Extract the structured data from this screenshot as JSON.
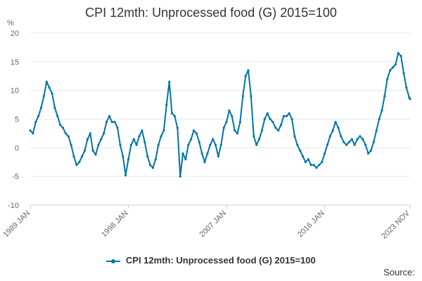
{
  "chart_data": {
    "type": "line",
    "title": "CPI 12mth: Unprocessed food (G) 2015=100",
    "ylabel": "%",
    "ylim": [
      -10,
      20
    ],
    "yticks": [
      "20",
      "15",
      "10",
      "5",
      "0",
      "-5",
      "-10"
    ],
    "xticks": [
      "1989 JAN",
      "1998 JAN",
      "2007 JAN",
      "2016 JAN",
      "2023 NOV"
    ],
    "x_start": "1989-01",
    "x_end": "2023-11",
    "grid": "horizontal",
    "legend_position": "bottom",
    "series": [
      {
        "name": "CPI 12mth: Unprocessed food (G) 2015=100",
        "color": "#0075a3",
        "points": [
          [
            "1989-01",
            3.0
          ],
          [
            "1989-04",
            2.5
          ],
          [
            "1989-07",
            4.5
          ],
          [
            "1989-10",
            5.5
          ],
          [
            "1990-01",
            7.0
          ],
          [
            "1990-04",
            9.0
          ],
          [
            "1990-07",
            11.5
          ],
          [
            "1990-10",
            10.5
          ],
          [
            "1991-01",
            9.5
          ],
          [
            "1991-04",
            7.0
          ],
          [
            "1991-07",
            5.5
          ],
          [
            "1991-10",
            4.0
          ],
          [
            "1992-01",
            3.5
          ],
          [
            "1992-04",
            2.5
          ],
          [
            "1992-07",
            2.0
          ],
          [
            "1992-10",
            0.5
          ],
          [
            "1993-01",
            -1.5
          ],
          [
            "1993-04",
            -3.0
          ],
          [
            "1993-07",
            -2.5
          ],
          [
            "1993-10",
            -1.5
          ],
          [
            "1994-01",
            -0.5
          ],
          [
            "1994-04",
            1.5
          ],
          [
            "1994-07",
            2.5
          ],
          [
            "1994-10",
            -0.5
          ],
          [
            "1995-01",
            -1.2
          ],
          [
            "1995-04",
            0.5
          ],
          [
            "1995-07",
            1.5
          ],
          [
            "1995-10",
            2.5
          ],
          [
            "1996-01",
            4.5
          ],
          [
            "1996-04",
            5.5
          ],
          [
            "1996-07",
            4.5
          ],
          [
            "1996-10",
            4.5
          ],
          [
            "1997-01",
            3.5
          ],
          [
            "1997-04",
            0.5
          ],
          [
            "1997-07",
            -1.5
          ],
          [
            "1997-10",
            -4.8
          ],
          [
            "1998-01",
            -2.0
          ],
          [
            "1998-04",
            0.5
          ],
          [
            "1998-07",
            1.5
          ],
          [
            "1998-10",
            0.5
          ],
          [
            "1999-01",
            2.0
          ],
          [
            "1999-04",
            3.0
          ],
          [
            "1999-07",
            1.0
          ],
          [
            "1999-10",
            -1.5
          ],
          [
            "2000-01",
            -3.0
          ],
          [
            "2000-04",
            -3.5
          ],
          [
            "2000-07",
            -2.0
          ],
          [
            "2000-10",
            0.5
          ],
          [
            "2001-01",
            2.0
          ],
          [
            "2001-04",
            3.0
          ],
          [
            "2001-07",
            7.5
          ],
          [
            "2001-10",
            11.5
          ],
          [
            "2002-01",
            6.0
          ],
          [
            "2002-04",
            5.5
          ],
          [
            "2002-07",
            3.5
          ],
          [
            "2002-10",
            -5.0
          ],
          [
            "2003-01",
            -1.0
          ],
          [
            "2003-04",
            -2.0
          ],
          [
            "2003-07",
            0.5
          ],
          [
            "2003-10",
            1.5
          ],
          [
            "2004-01",
            3.0
          ],
          [
            "2004-04",
            2.5
          ],
          [
            "2004-07",
            1.0
          ],
          [
            "2004-10",
            -1.0
          ],
          [
            "2005-01",
            -2.5
          ],
          [
            "2005-04",
            -1.0
          ],
          [
            "2005-07",
            0.5
          ],
          [
            "2005-10",
            1.5
          ],
          [
            "2006-01",
            0.5
          ],
          [
            "2006-04",
            -1.5
          ],
          [
            "2006-07",
            0.5
          ],
          [
            "2006-10",
            3.5
          ],
          [
            "2007-01",
            4.5
          ],
          [
            "2007-04",
            6.5
          ],
          [
            "2007-07",
            5.5
          ],
          [
            "2007-10",
            3.0
          ],
          [
            "2008-01",
            2.5
          ],
          [
            "2008-04",
            4.5
          ],
          [
            "2008-07",
            9.0
          ],
          [
            "2008-10",
            12.5
          ],
          [
            "2009-01",
            13.5
          ],
          [
            "2009-04",
            9.0
          ],
          [
            "2009-07",
            2.0
          ],
          [
            "2009-10",
            0.5
          ],
          [
            "2010-01",
            1.5
          ],
          [
            "2010-04",
            3.0
          ],
          [
            "2010-07",
            5.0
          ],
          [
            "2010-10",
            6.0
          ],
          [
            "2011-01",
            5.0
          ],
          [
            "2011-04",
            4.5
          ],
          [
            "2011-07",
            3.5
          ],
          [
            "2011-10",
            3.0
          ],
          [
            "2012-01",
            4.0
          ],
          [
            "2012-04",
            5.5
          ],
          [
            "2012-07",
            5.5
          ],
          [
            "2012-10",
            6.0
          ],
          [
            "2013-01",
            5.0
          ],
          [
            "2013-04",
            2.0
          ],
          [
            "2013-07",
            0.5
          ],
          [
            "2013-10",
            -0.5
          ],
          [
            "2014-01",
            -1.5
          ],
          [
            "2014-04",
            -2.5
          ],
          [
            "2014-07",
            -2.0
          ],
          [
            "2014-10",
            -3.0
          ],
          [
            "2015-01",
            -3.0
          ],
          [
            "2015-04",
            -3.5
          ],
          [
            "2015-07",
            -3.0
          ],
          [
            "2015-10",
            -2.5
          ],
          [
            "2016-01",
            -1.0
          ],
          [
            "2016-04",
            0.5
          ],
          [
            "2016-07",
            2.0
          ],
          [
            "2016-10",
            3.0
          ],
          [
            "2017-01",
            4.5
          ],
          [
            "2017-04",
            3.5
          ],
          [
            "2017-07",
            2.0
          ],
          [
            "2017-10",
            1.0
          ],
          [
            "2018-01",
            0.5
          ],
          [
            "2018-04",
            1.0
          ],
          [
            "2018-07",
            1.5
          ],
          [
            "2018-10",
            0.5
          ],
          [
            "2019-01",
            1.5
          ],
          [
            "2019-04",
            2.0
          ],
          [
            "2019-07",
            1.5
          ],
          [
            "2019-10",
            0.5
          ],
          [
            "2020-01",
            -1.0
          ],
          [
            "2020-04",
            -0.5
          ],
          [
            "2020-07",
            1.0
          ],
          [
            "2020-10",
            3.0
          ],
          [
            "2021-01",
            5.0
          ],
          [
            "2021-04",
            6.5
          ],
          [
            "2021-07",
            9.0
          ],
          [
            "2021-10",
            12.0
          ],
          [
            "2022-01",
            13.5
          ],
          [
            "2022-04",
            14.0
          ],
          [
            "2022-07",
            14.5
          ],
          [
            "2022-10",
            16.5
          ],
          [
            "2023-01",
            16.0
          ],
          [
            "2023-04",
            13.0
          ],
          [
            "2023-07",
            10.5
          ],
          [
            "2023-10",
            8.8
          ],
          [
            "2023-11",
            8.5
          ]
        ]
      }
    ]
  },
  "legend_label": "CPI 12mth: Unprocessed food (G) 2015=100",
  "source_label": "Source:"
}
